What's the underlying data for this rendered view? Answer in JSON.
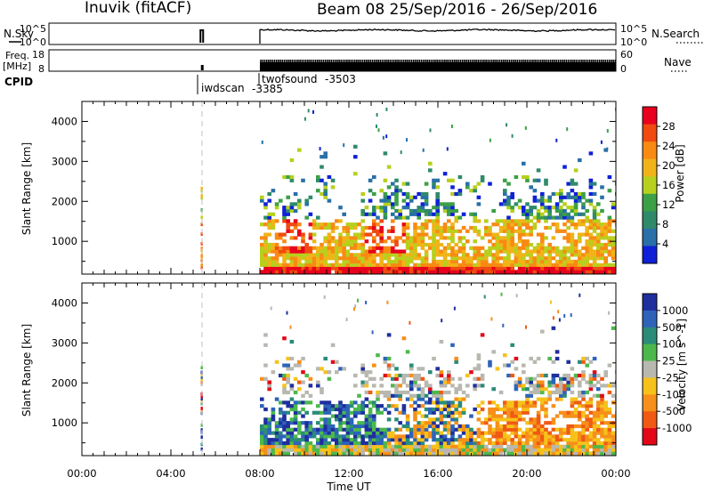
{
  "header": {
    "title_left": "Inuvik (fitACF)",
    "title_right": "Beam 08  25/Sep/2016 - 26/Sep/2016"
  },
  "strips": {
    "nsky_label": "N.Sky",
    "nsearch_label": "N.Search",
    "nsky_ticks": [
      "10^5",
      "10^0"
    ],
    "nsearch_ticks": [
      "10^5",
      "10^0"
    ],
    "freq_label_1": "Freq.",
    "freq_label_2": "[MHz]",
    "freq_ticks": [
      "18",
      "8"
    ],
    "nave_label": "Nave",
    "nave_ticks": [
      "60",
      "0"
    ],
    "cpid_label": "CPID",
    "cpid_entries": [
      {
        "name": "iwdscan",
        "id": "-3385",
        "start_hour": 5.33
      },
      {
        "name": "twofsound",
        "id": "-3503",
        "start_hour": 8.0
      }
    ]
  },
  "chart_data": [
    {
      "type": "heatmap",
      "title": "",
      "xlabel": "",
      "ylabel": "Slant Range [km]",
      "xlim": [
        0,
        24
      ],
      "ylim": [
        180,
        4500
      ],
      "yticks": [
        1000,
        2000,
        3000,
        4000
      ],
      "colorbar": {
        "label": "Power [dB]",
        "ticks": [
          "28",
          "24",
          "20",
          "16",
          "12",
          "8",
          "4"
        ],
        "colors": [
          "#e8001c",
          "#f04a10",
          "#f88a14",
          "#f0b418",
          "#b7d01e",
          "#3ca046",
          "#2f8a6a",
          "#2870a8",
          "#1020d8"
        ]
      },
      "regions": [
        {
          "x": [
            5.3,
            5.5
          ],
          "y": [
            300,
            2400
          ]
        },
        {
          "x": [
            8.0,
            24.0
          ],
          "y": [
            180,
            3300
          ]
        }
      ]
    },
    {
      "type": "heatmap",
      "title": "",
      "xlabel": "Time UT",
      "ylabel": "Slant Range [km]",
      "xlim": [
        0,
        24
      ],
      "ylim": [
        180,
        4500
      ],
      "yticks": [
        1000,
        2000,
        3000,
        4000
      ],
      "xticks": [
        "00:00",
        "04:00",
        "08:00",
        "12:00",
        "16:00",
        "20:00",
        "00:00"
      ],
      "colorbar": {
        "label": "Velocity  [m s^-1]",
        "ticks": [
          "1000",
          "500",
          "100",
          "25",
          "-25",
          "-100",
          "-500",
          "-1000"
        ],
        "colors": [
          "#1f2f9e",
          "#2d64ba",
          "#2a8c78",
          "#4cb84c",
          "#b8b8b0",
          "#f6c21a",
          "#f6901a",
          "#f05a14",
          "#e20818"
        ]
      },
      "regions": [
        {
          "x": [
            5.3,
            5.5
          ],
          "y": [
            300,
            2400
          ]
        },
        {
          "x": [
            8.0,
            24.0
          ],
          "y": [
            180,
            3300
          ]
        }
      ]
    }
  ]
}
